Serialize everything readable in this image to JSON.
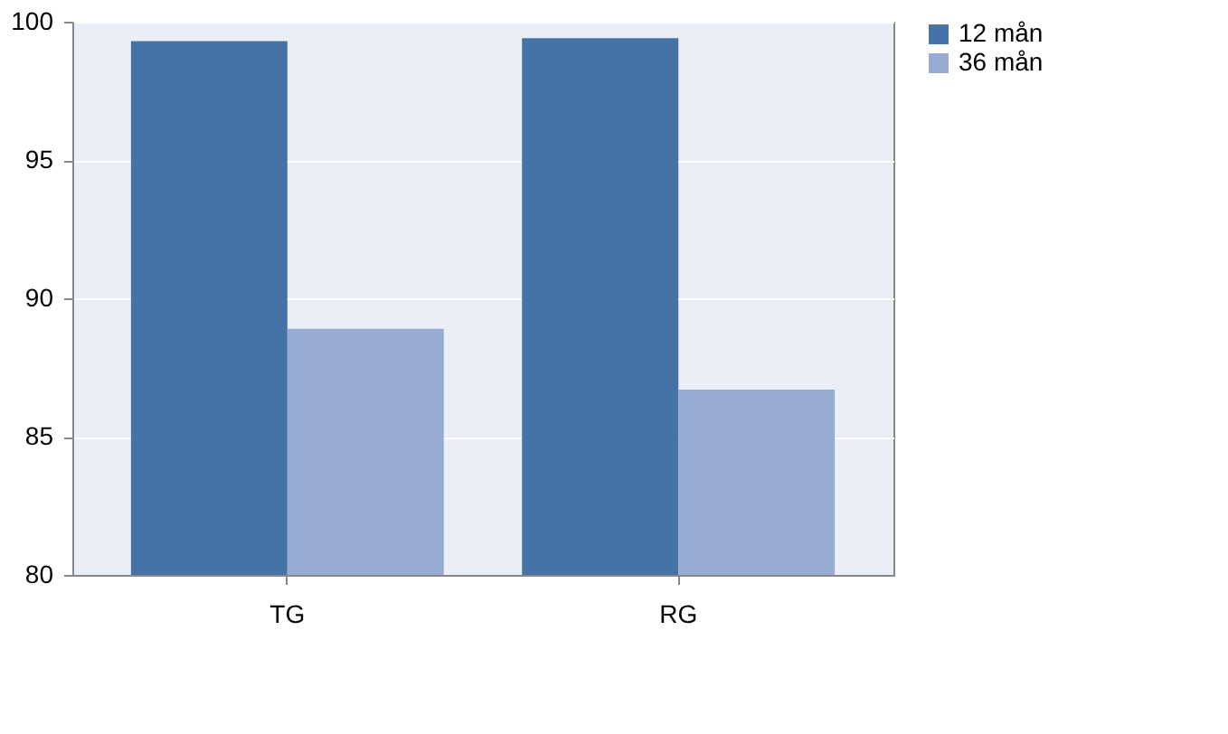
{
  "chart_data": {
    "type": "bar",
    "categories": [
      "TG",
      "RG"
    ],
    "series": [
      {
        "name": "12 mån",
        "color": "#4572a7",
        "values": [
          99.3,
          99.4
        ]
      },
      {
        "name": "36 mån",
        "color": "#97abd3",
        "values": [
          88.9,
          86.7
        ]
      }
    ],
    "ylim": [
      80,
      100
    ],
    "yticks": [
      80,
      85,
      90,
      95,
      100
    ],
    "grid": "y",
    "legend": "right"
  }
}
